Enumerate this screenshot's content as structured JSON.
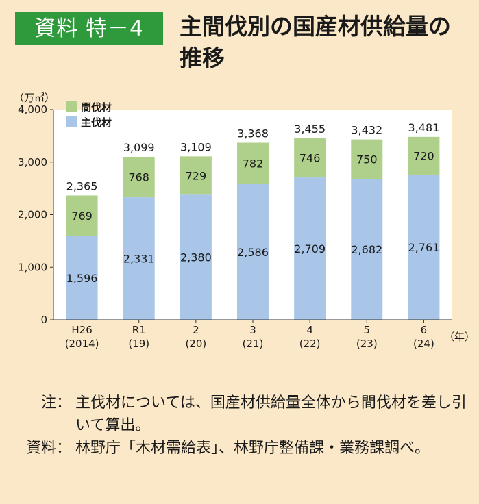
{
  "header": {
    "badge": "資料 特－4",
    "title": "主間伐別の国産材供給量の推移"
  },
  "chart_data": {
    "type": "bar",
    "stacked": true,
    "unit_label": "（万㎥）",
    "x_unit_label": "（年）",
    "categories": [
      {
        "top": "H26",
        "bottom": "(2014)"
      },
      {
        "top": "R1",
        "bottom": "(19)"
      },
      {
        "top": "2",
        "bottom": "(20)"
      },
      {
        "top": "3",
        "bottom": "(21)"
      },
      {
        "top": "4",
        "bottom": "(22)"
      },
      {
        "top": "5",
        "bottom": "(23)"
      },
      {
        "top": "6",
        "bottom": "(24)"
      }
    ],
    "series": [
      {
        "name": "主伐材",
        "color": "#a9c6e9",
        "values": [
          1596,
          2331,
          2380,
          2586,
          2709,
          2682,
          2761
        ],
        "labels": [
          "1,596",
          "2,331",
          "2,380",
          "2,586",
          "2,709",
          "2,682",
          "2,761"
        ]
      },
      {
        "name": "間伐材",
        "color": "#afd08b",
        "values": [
          769,
          768,
          729,
          782,
          746,
          750,
          720
        ],
        "labels": [
          "769",
          "768",
          "729",
          "782",
          "746",
          "750",
          "720"
        ]
      }
    ],
    "totals": [
      "2,365",
      "3,099",
      "3,109",
      "3,368",
      "3,455",
      "3,432",
      "3,481"
    ],
    "legend": [
      "間伐材",
      "主伐材"
    ],
    "legend_colors": [
      "#afd08b",
      "#a9c6e9"
    ],
    "legend_position": "top-left",
    "yticks": [
      "0",
      "1,000",
      "2,000",
      "3,000",
      "4,000"
    ],
    "ylim": [
      0,
      4000
    ],
    "grid": false
  },
  "notes": {
    "note_label": "注：",
    "note_text": "主伐材については、国産材供給量全体から間伐材を差し引いて算出。",
    "source_label": "資料：",
    "source_text": "林野庁「木材需給表」、林野庁整備課・業務課調べ。"
  }
}
